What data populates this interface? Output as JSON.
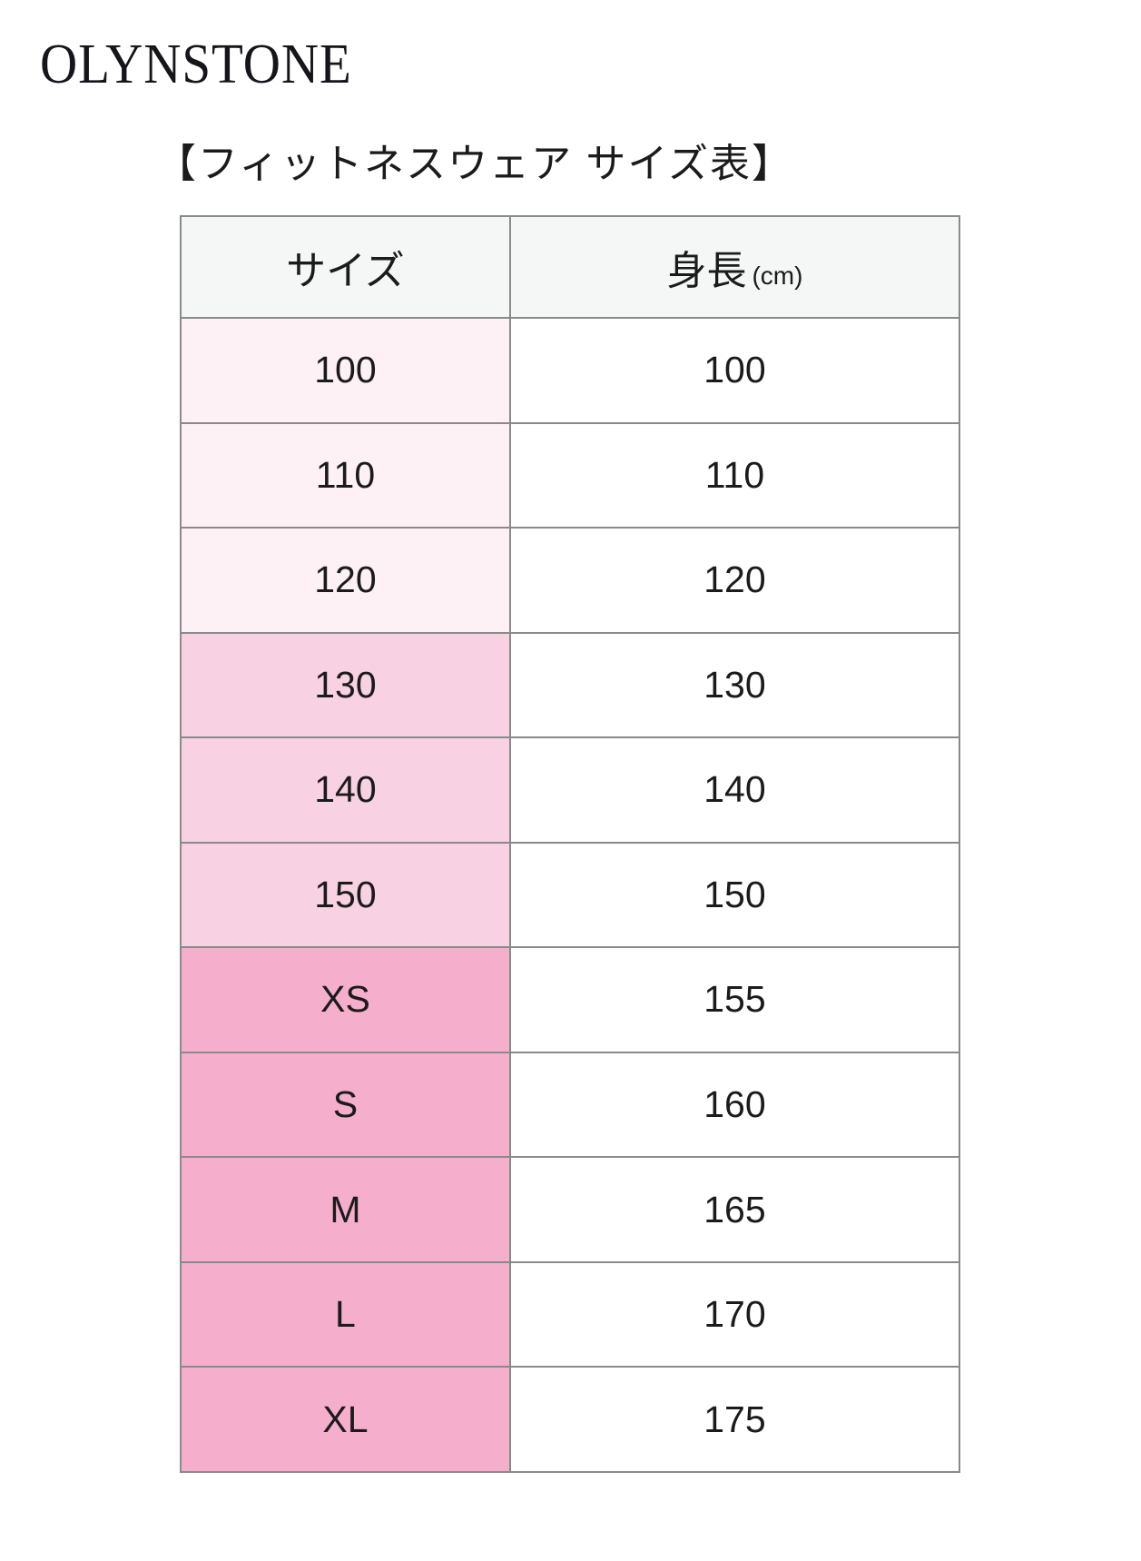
{
  "brand": {
    "name": "OLYNSTONE"
  },
  "title": "【フィットネスウェア サイズ表】",
  "table": {
    "headers": {
      "size": "サイズ",
      "height": "身長",
      "height_unit": "(cm)"
    },
    "rows": [
      {
        "size": "100",
        "height": "100",
        "tier": "light"
      },
      {
        "size": "110",
        "height": "110",
        "tier": "light"
      },
      {
        "size": "120",
        "height": "120",
        "tier": "light"
      },
      {
        "size": "130",
        "height": "130",
        "tier": "medium"
      },
      {
        "size": "140",
        "height": "140",
        "tier": "medium"
      },
      {
        "size": "150",
        "height": "150",
        "tier": "medium"
      },
      {
        "size": "XS",
        "height": "155",
        "tier": "dark"
      },
      {
        "size": "S",
        "height": "160",
        "tier": "dark"
      },
      {
        "size": "M",
        "height": "165",
        "tier": "dark"
      },
      {
        "size": "L",
        "height": "170",
        "tier": "dark"
      },
      {
        "size": "XL",
        "height": "175",
        "tier": "dark"
      }
    ]
  },
  "colors": {
    "tier_light": "#fdf1f6",
    "tier_medium": "#f8d2e2",
    "tier_dark": "#f5aecb",
    "header_bg": "#f5f6f6",
    "border": "#8a8a8a",
    "text": "#1b1b1b"
  },
  "chart_data": {
    "type": "table",
    "title": "【フィットネスウェア サイズ表】",
    "columns": [
      "サイズ",
      "身長 (cm)"
    ],
    "rows": [
      [
        "100",
        100
      ],
      [
        "110",
        110
      ],
      [
        "120",
        120
      ],
      [
        "130",
        130
      ],
      [
        "140",
        140
      ],
      [
        "150",
        150
      ],
      [
        "XS",
        155
      ],
      [
        "S",
        160
      ],
      [
        "M",
        165
      ],
      [
        "L",
        170
      ],
      [
        "XL",
        175
      ]
    ]
  }
}
